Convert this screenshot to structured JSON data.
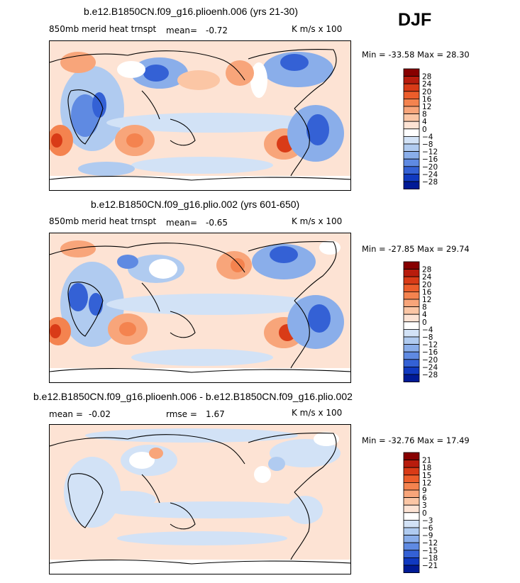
{
  "season": "DJF",
  "chart_data": [
    {
      "type": "heatmap",
      "title": "b.e12.B1850CN.f09_g16.plioenh.006 (yrs 21-30)",
      "field_label": "850mb merid heat trnspt",
      "stat_label": "mean=",
      "stat_value": "-0.72",
      "units": "K m/s x 100",
      "min_label": "Min =",
      "min": "-33.58",
      "max_label": "Max =",
      "max": "28.30",
      "colorbar_levels": [
        "28",
        "24",
        "20",
        "16",
        "12",
        "8",
        "4",
        "0",
        "-4",
        "-8",
        "-12",
        "-16",
        "-20",
        "-24",
        "-28"
      ],
      "colorbar_colors": [
        "#870000",
        "#b81c0d",
        "#d93b17",
        "#ec5d2b",
        "#f4834f",
        "#f8a57a",
        "#fbc6a5",
        "#fde3d4",
        "#ffffff",
        "#d2e2f6",
        "#b0cbf0",
        "#8aaeea",
        "#5f8ae2",
        "#3461d5",
        "#1039c0",
        "#001a96"
      ]
    },
    {
      "type": "heatmap",
      "title": "b.e12.B1850CN.f09_g16.plio.002 (yrs 601-650)",
      "field_label": "850mb merid heat trnspt",
      "stat_label": "mean=",
      "stat_value": "-0.65",
      "units": "K m/s x 100",
      "min_label": "Min =",
      "min": "-27.85",
      "max_label": "Max =",
      "max": "29.74",
      "colorbar_levels": [
        "28",
        "24",
        "20",
        "16",
        "12",
        "8",
        "4",
        "0",
        "-4",
        "-8",
        "-12",
        "-16",
        "-20",
        "-24",
        "-28"
      ],
      "colorbar_colors": [
        "#870000",
        "#b81c0d",
        "#d93b17",
        "#ec5d2b",
        "#f4834f",
        "#f8a57a",
        "#fbc6a5",
        "#fde3d4",
        "#ffffff",
        "#d2e2f6",
        "#b0cbf0",
        "#8aaeea",
        "#5f8ae2",
        "#3461d5",
        "#1039c0",
        "#001a96"
      ]
    },
    {
      "type": "heatmap",
      "title": "b.e12.B1850CN.f09_g16.plioenh.006 - b.e12.B1850CN.f09_g16.plio.002",
      "stat_label": "mean =",
      "stat_value": "-0.02",
      "rmse_label": "rmse =",
      "rmse_value": "1.67",
      "units": "K m/s x 100",
      "min_label": "Min =",
      "min": "-32.76",
      "max_label": "Max =",
      "max": "17.49",
      "colorbar_levels": [
        "21",
        "18",
        "15",
        "12",
        "9",
        "6",
        "3",
        "0",
        "-3",
        "-6",
        "-9",
        "-12",
        "-15",
        "-18",
        "-21"
      ],
      "colorbar_colors": [
        "#870000",
        "#b81c0d",
        "#d93b17",
        "#ec5d2b",
        "#f4834f",
        "#f8a57a",
        "#fbc6a5",
        "#fde3d4",
        "#ffffff",
        "#d2e2f6",
        "#b0cbf0",
        "#8aaeea",
        "#5f8ae2",
        "#3461d5",
        "#1039c0",
        "#001a96"
      ]
    }
  ]
}
